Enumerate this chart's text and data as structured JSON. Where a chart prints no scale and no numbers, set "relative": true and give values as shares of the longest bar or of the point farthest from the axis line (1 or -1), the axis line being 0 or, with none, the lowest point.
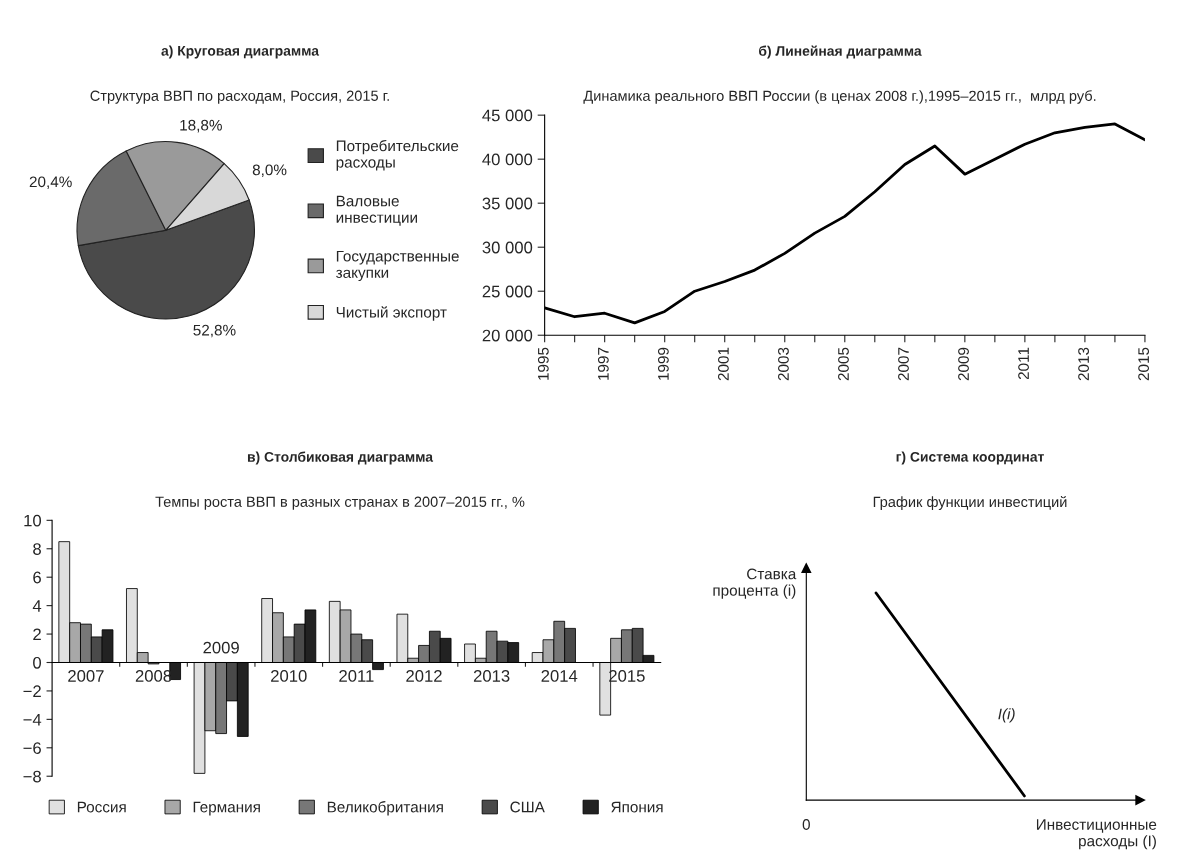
{
  "chart_data": [
    {
      "type": "pie",
      "title": "а) Круговая диаграмма",
      "subtitle": "Структура ВВП по расходам, Россия, 2015 г.",
      "categories": [
        "Потребительские расходы",
        "Валовые инвестиции",
        "Государственные закупки",
        "Чистый экспорт"
      ],
      "values": [
        52.8,
        20.4,
        18.8,
        8.0
      ],
      "colors": [
        "#4a4a4a",
        "#6a6a6a",
        "#9a9a9a",
        "#d8d8d8"
      ],
      "value_labels": [
        "52,8%",
        "20,4%",
        "18,8%",
        "8,0%"
      ],
      "legend": "right"
    },
    {
      "type": "line",
      "title": "б) Линейная диаграмма",
      "subtitle": "Динамика реального ВВП России (в ценах 2008 г.),1995–2015 гг.,  млрд руб.",
      "x": [
        1995,
        1996,
        1997,
        1998,
        1999,
        2000,
        2001,
        2002,
        2003,
        2004,
        2005,
        2006,
        2007,
        2008,
        2009,
        2010,
        2011,
        2012,
        2013,
        2014,
        2015
      ],
      "series": [
        {
          "color": "#000000",
          "values": [
            23100,
            22100,
            22500,
            21400,
            22700,
            25000,
            26100,
            27400,
            29300,
            31600,
            33500,
            36300,
            39400,
            41500,
            38300,
            40000,
            41700,
            43000,
            43600,
            44000,
            42200
          ]
        }
      ],
      "xlim": [
        1995,
        2015
      ],
      "xticks": [
        1995,
        {
          "value": 1996,
          "label": null
        },
        1997,
        {
          "value": 1998,
          "label": null
        },
        1999,
        {
          "value": 2000,
          "label": null
        },
        2001,
        {
          "value": 2002,
          "label": null
        },
        2003,
        {
          "value": 2004,
          "label": null
        },
        2005,
        {
          "value": 2006,
          "label": null
        },
        2007,
        {
          "value": 2008,
          "label": null
        },
        2009,
        {
          "value": 2010,
          "label": null
        },
        2011,
        {
          "value": 2012,
          "label": null
        },
        2013,
        {
          "value": 2014,
          "label": null
        },
        2015
      ],
      "ylim": [
        20000,
        45000
      ],
      "yticks": [
        {
          "value": 20000,
          "label": "20 000"
        },
        {
          "value": 25000,
          "label": "25 000"
        },
        {
          "value": 30000,
          "label": "30 000"
        },
        {
          "value": 35000,
          "label": "35 000"
        },
        {
          "value": 40000,
          "label": "40 000"
        },
        {
          "value": 45000,
          "label": "45 000"
        }
      ],
      "grid": false
    },
    {
      "type": "bar",
      "title": "в) Столбиковая диаграмма",
      "subtitle": "Темпы роста ВВП в разных странах в 2007–2015 гг., %",
      "categories": [
        "2007",
        "2008",
        "2009",
        "2010",
        "2011",
        "2012",
        "2013",
        "2014",
        "2015"
      ],
      "series": [
        {
          "name": "Россия",
          "color": "#e0e0e0",
          "values": [
            8.5,
            5.2,
            -7.8,
            4.5,
            4.3,
            3.4,
            1.3,
            0.7,
            -3.7
          ]
        },
        {
          "name": "Германия",
          "color": "#a8a8a8",
          "values": [
            2.8,
            0.7,
            -4.8,
            3.5,
            3.7,
            0.3,
            0.3,
            1.6,
            1.7
          ]
        },
        {
          "name": "Великобритания",
          "color": "#777777",
          "values": [
            2.7,
            -0.1,
            -5.0,
            1.8,
            2.0,
            1.2,
            2.2,
            2.9,
            2.3
          ]
        },
        {
          "name": "США",
          "color": "#4a4a4a",
          "values": [
            1.8,
            null,
            -2.7,
            2.7,
            1.6,
            2.2,
            1.5,
            2.4,
            2.4
          ]
        },
        {
          "name": "Япония",
          "color": "#222222",
          "values": [
            2.3,
            -1.2,
            -5.2,
            3.7,
            -0.5,
            1.7,
            1.4,
            null,
            0.5
          ]
        }
      ],
      "ylim": [
        -8,
        10
      ],
      "yticks": [
        {
          "value": -8,
          "label": "−8"
        },
        {
          "value": -6,
          "label": "−6"
        },
        {
          "value": -4,
          "label": "−4"
        },
        {
          "value": -2,
          "label": "−2"
        },
        0,
        2,
        4,
        6,
        8,
        10
      ],
      "grid": false,
      "legend": "bottom"
    },
    {
      "type": "line",
      "title": "г) Система координат",
      "subtitle": "График функции инвестиций",
      "relative": true,
      "categories": [
        null,
        null
      ],
      "series": [
        {
          "name": "I(i)",
          "color": "#000000",
          "values": [
            1,
            0.02
          ]
        }
      ],
      "xlabel": "Инвестиционные расходы (I)",
      "ylabel": "Ставка процента (i)",
      "annotations": [
        "0"
      ]
    }
  ]
}
